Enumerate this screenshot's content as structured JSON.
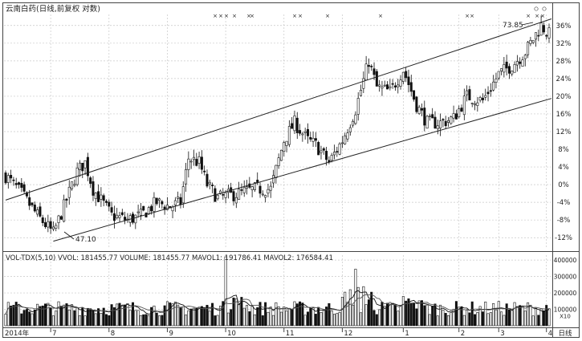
{
  "header": {
    "title": "云南白药(日线,前复权 对数)",
    "volume_indicators": "VOL-TDX(5,10)  VVOL: 181455.77  VOLUME: 181455.77  MAVOL1: 191786.41  MAVOL2: 176584.41"
  },
  "annotations": {
    "high_price": "73.85",
    "low_price": "47.10"
  },
  "chart_data": [
    {
      "type": "candlestick",
      "title": "云南白药(日线,前复权 对数)",
      "y_axis": {
        "labels": [
          "36%",
          "32%",
          "28%",
          "24%",
          "20%",
          "16%",
          "12%",
          "8%",
          "4%",
          "0%",
          "-4%",
          "-8%",
          "-12%"
        ],
        "values": [
          36,
          32,
          28,
          24,
          20,
          16,
          12,
          8,
          4,
          0,
          -4,
          -8,
          -12
        ],
        "ylim": [
          -14.5,
          38.5
        ]
      },
      "x_axis": {
        "labels": [
          "2014年",
          "7",
          "8",
          "9",
          "10",
          "11",
          "12",
          "1",
          "2",
          "3",
          "4"
        ],
        "end_label": "日线"
      },
      "channel": {
        "upper": [
          [
            0,
            -3.5
          ],
          [
            205,
            37.5
          ]
        ],
        "lower": [
          [
            18,
            -12.8
          ],
          [
            205,
            19.5
          ]
        ]
      },
      "marks": {
        "high": 73.85,
        "low": 47.1
      },
      "grid": true
    },
    {
      "type": "bar",
      "title": "VOL-TDX(5,10)",
      "y_axis": {
        "labels": [
          "400000",
          "300000",
          "200000",
          "100000"
        ],
        "values": [
          400000,
          300000,
          200000,
          100000
        ],
        "multiplier_label": "X10"
      },
      "series": [
        {
          "name": "VVOL"
        },
        {
          "name": "MAVOL1"
        },
        {
          "name": "MAVOL2"
        }
      ]
    }
  ],
  "colors": {
    "up": "#ffffff",
    "down": "#111111",
    "line": "#222222",
    "grid": "#c8c8c8",
    "mark": "#555555"
  }
}
